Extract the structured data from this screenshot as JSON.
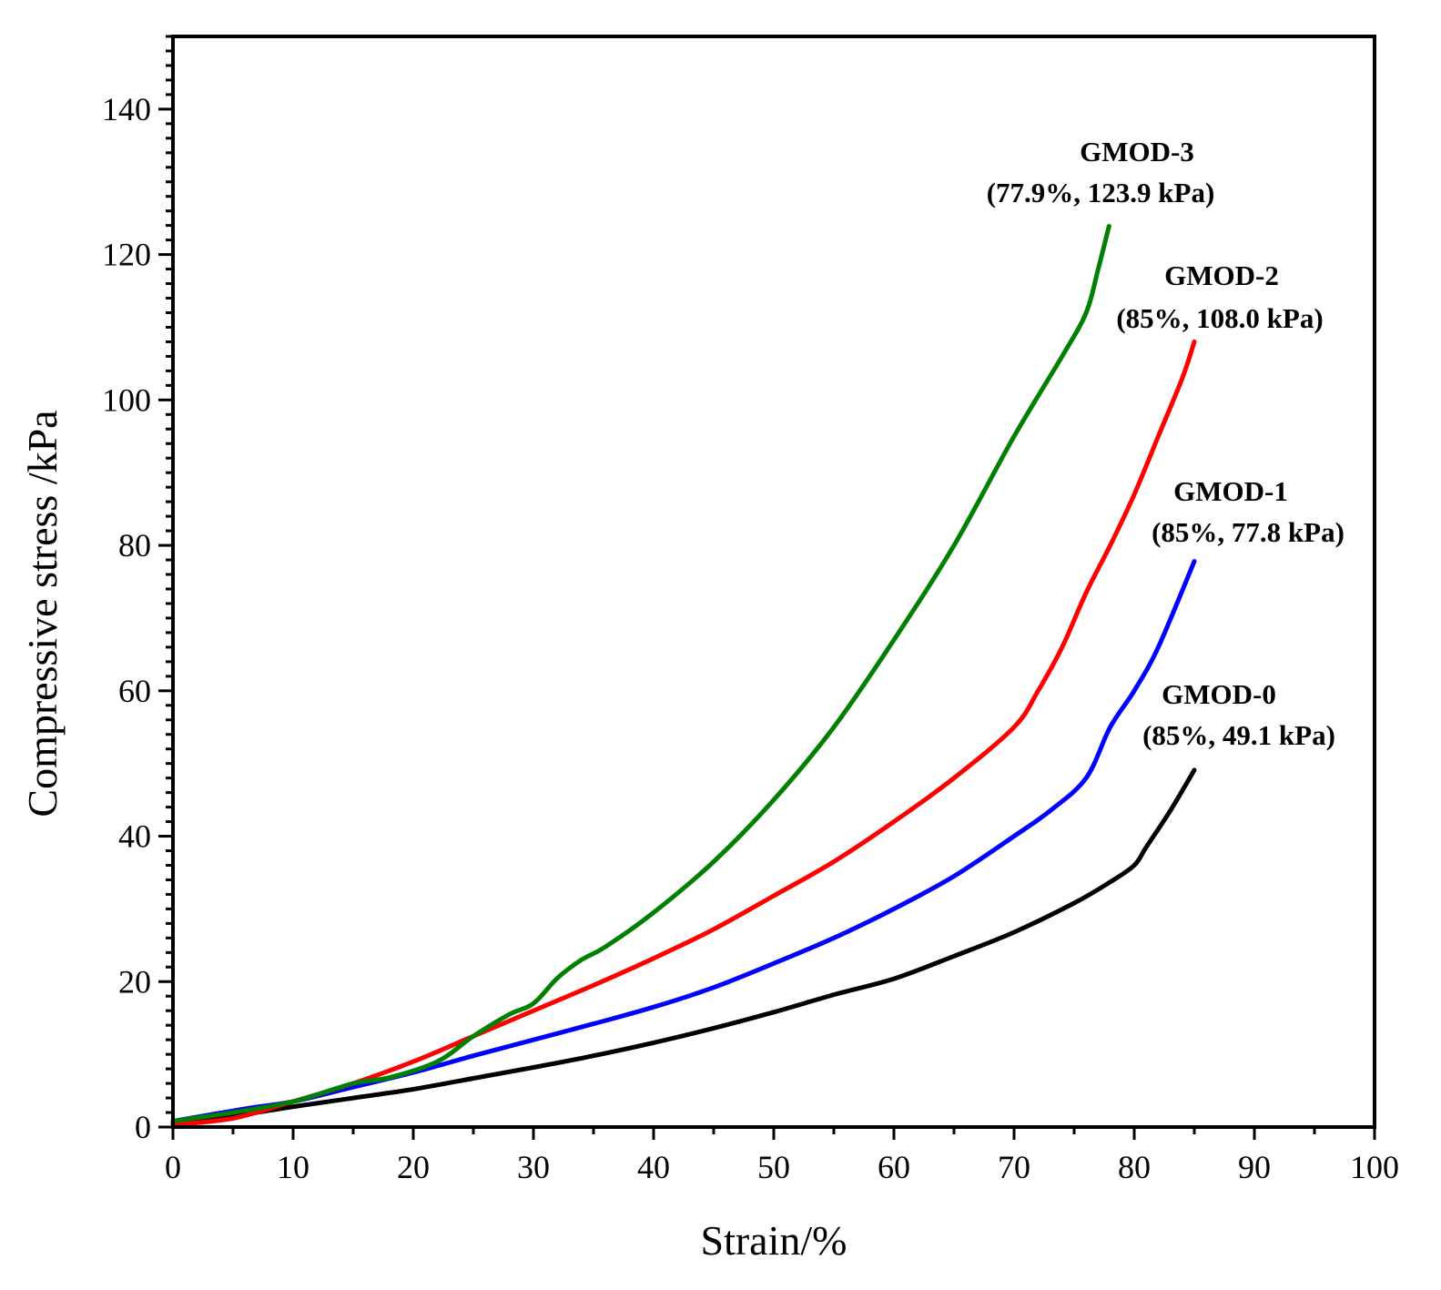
{
  "chart_data": {
    "type": "line",
    "title": "",
    "xlabel": "Strain/%",
    "ylabel": "Compressive stress /kPa",
    "xlim": [
      0,
      100
    ],
    "ylim": [
      0,
      150
    ],
    "xticks": [
      "0",
      "10",
      "20",
      "30",
      "40",
      "50",
      "60",
      "70",
      "80",
      "90",
      "100"
    ],
    "yticks": [
      "0",
      "20",
      "40",
      "60",
      "80",
      "100",
      "120",
      "140"
    ],
    "grid": false,
    "legend": "none",
    "series": [
      {
        "name": "GMOD-0",
        "color": "#000000",
        "annotation": [
          "GMOD-0",
          "(85%, 49.1 kPa)"
        ],
        "x": [
          0,
          5,
          10,
          15,
          20,
          25,
          30,
          35,
          40,
          45,
          50,
          55,
          60,
          65,
          70,
          75,
          78,
          80,
          81,
          83,
          85
        ],
        "y": [
          0.5,
          1.5,
          2.8,
          4.0,
          5.2,
          6.7,
          8.2,
          9.8,
          11.6,
          13.6,
          15.8,
          18.2,
          20.4,
          23.5,
          26.8,
          30.8,
          33.7,
          36.0,
          38.5,
          43.5,
          49.1
        ]
      },
      {
        "name": "GMOD-1",
        "color": "#0000ff",
        "annotation": [
          "GMOD-1",
          "(85%, 77.8 kPa)"
        ],
        "x": [
          0,
          6,
          10,
          15,
          20,
          25,
          30,
          35,
          40,
          45,
          50,
          55,
          60,
          65,
          70,
          73,
          76,
          78,
          80,
          82,
          85
        ],
        "y": [
          0.8,
          2.5,
          3.5,
          5.5,
          7.5,
          9.8,
          12.0,
          14.2,
          16.5,
          19.2,
          22.5,
          26.0,
          30.0,
          34.5,
          40.0,
          43.5,
          48.0,
          55.0,
          60.0,
          66.0,
          77.8
        ]
      },
      {
        "name": "GMOD-2",
        "color": "#ff0000",
        "annotation": [
          "GMOD-2",
          "(85%, 108.0 kPa)"
        ],
        "x": [
          0,
          5,
          10,
          15,
          20,
          25,
          30,
          35,
          40,
          45,
          50,
          55,
          60,
          65,
          70,
          72,
          74,
          76,
          78,
          80,
          82,
          84,
          85
        ],
        "y": [
          0.3,
          1.2,
          3.5,
          6.0,
          9.0,
          12.5,
          16.0,
          19.5,
          23.2,
          27.2,
          31.8,
          36.5,
          42.0,
          48.0,
          55.0,
          60.0,
          66.0,
          73.5,
          80.0,
          87.0,
          95.0,
          103.0,
          108.0
        ]
      },
      {
        "name": "GMOD-3",
        "color": "#008000",
        "annotation": [
          "GMOD-3",
          "(77.9%, 123.9 kPa)"
        ],
        "x": [
          0,
          5,
          10,
          15,
          18,
          22,
          25,
          28,
          30,
          32,
          34,
          36,
          40,
          45,
          50,
          55,
          60,
          65,
          70,
          74,
          76,
          77,
          77.9
        ],
        "y": [
          0.8,
          2.0,
          3.5,
          6.0,
          6.8,
          9.0,
          12.5,
          15.5,
          17.0,
          20.5,
          23.0,
          24.8,
          29.5,
          36.5,
          45.0,
          55.0,
          67.0,
          80.0,
          95.0,
          106.0,
          112.0,
          118.0,
          123.9
        ]
      }
    ]
  }
}
